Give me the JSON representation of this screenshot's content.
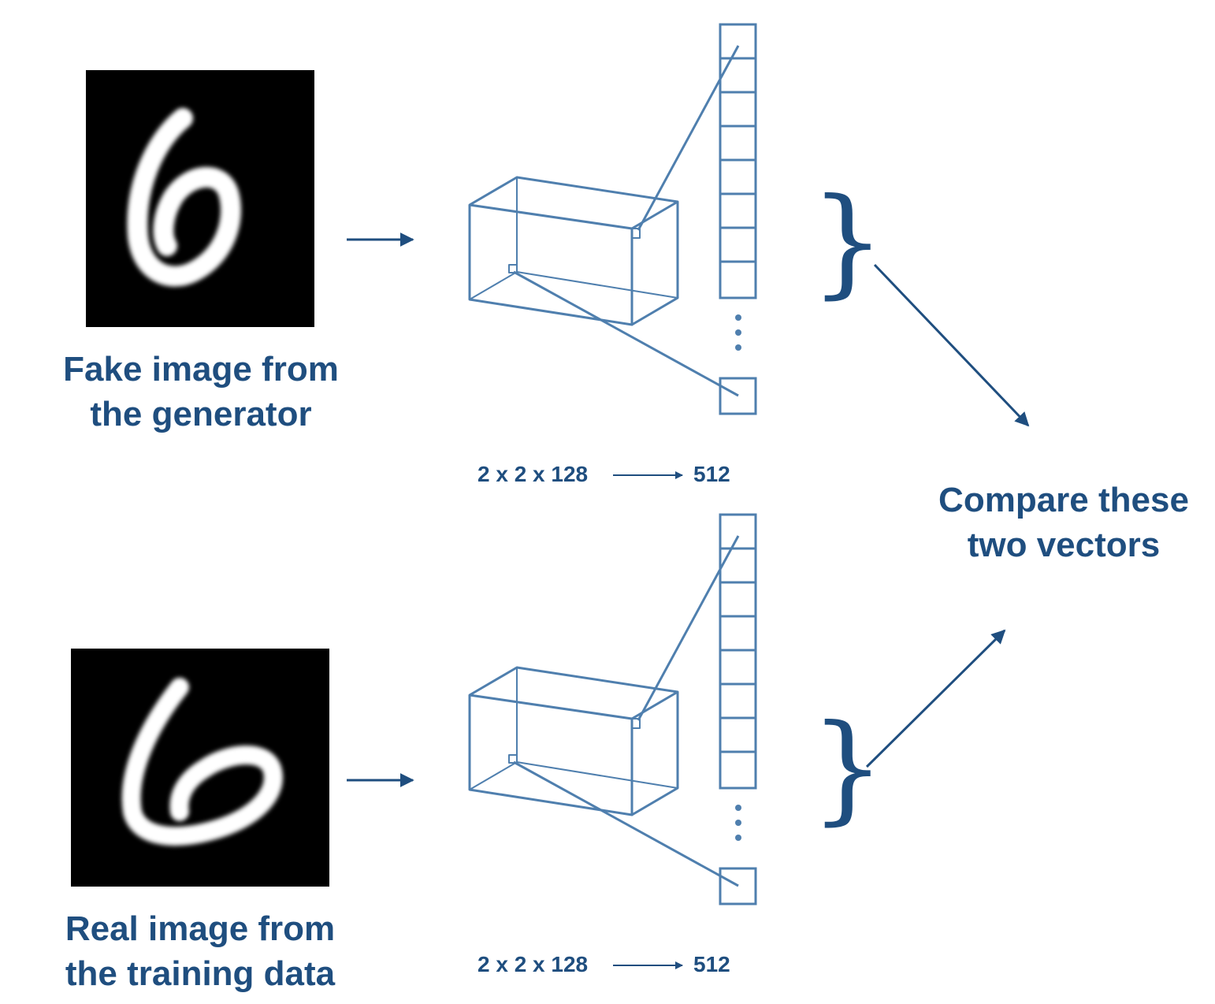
{
  "fake_image": {
    "digit": "6",
    "caption_line1": "Fake image from",
    "caption_line2": "the generator"
  },
  "real_image": {
    "digit": "6",
    "caption_line1": "Real image from",
    "caption_line2": "the training data"
  },
  "top_flatten": {
    "input_shape": "2 x 2 x 128",
    "output_size": "512"
  },
  "bottom_flatten": {
    "input_shape": "2 x 2 x 128",
    "output_size": "512"
  },
  "compare": {
    "line1": "Compare these",
    "line2": "two vectors"
  },
  "brace_glyph": "}",
  "colors": {
    "primary": "#1f4e7f",
    "diagram_lines": "#4f7fae",
    "image_bg": "#000000",
    "digit": "#ffffff"
  }
}
